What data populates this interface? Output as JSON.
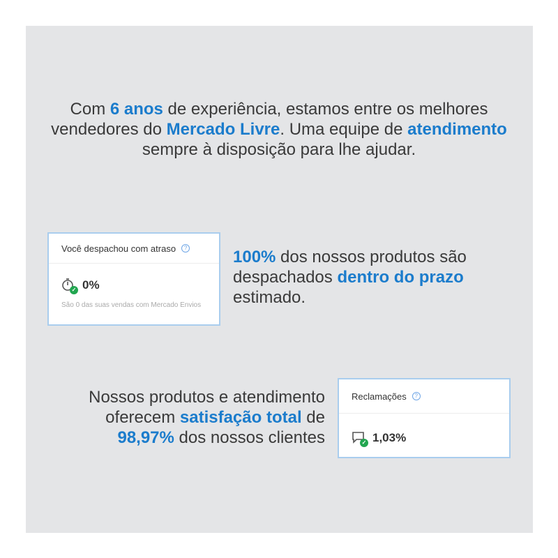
{
  "intro": [
    {
      "text": "Com ",
      "hl": false
    },
    {
      "text": "6 anos",
      "hl": true
    },
    {
      "text": " de experiência, estamos entre os melhores vendedores do ",
      "hl": false
    },
    {
      "text": "Mercado Livre",
      "hl": true
    },
    {
      "text": ". Uma equipe de ",
      "hl": false
    },
    {
      "text": "atendimento",
      "hl": true
    },
    {
      "text": " sempre à disposição para lhe ajudar.",
      "hl": false
    }
  ],
  "shipping_text": [
    {
      "text": "100%",
      "hl": true
    },
    {
      "text": " dos nossos produtos são despachados ",
      "hl": false
    },
    {
      "text": "dentro do prazo",
      "hl": true
    },
    {
      "text": " estimado.",
      "hl": false
    }
  ],
  "satisfaction_text": [
    {
      "text": "Nossos produtos e atendimento oferecem ",
      "hl": false
    },
    {
      "text": "satisfação total",
      "hl": true
    },
    {
      "text": " de ",
      "hl": false
    },
    {
      "text": "98,97%",
      "hl": true
    },
    {
      "text": " dos nossos clientes",
      "hl": false
    }
  ],
  "delay_card": {
    "title": "Você despachou com atraso",
    "help": "?",
    "value": "0%",
    "note": "São 0 das suas vendas com Mercado Envios",
    "icon": "stopwatch-check-icon"
  },
  "claims_card": {
    "title": "Reclamações",
    "help": "?",
    "value": "1,03%",
    "icon": "chat-check-icon"
  },
  "colors": {
    "highlight": "#1b7ccc",
    "background": "#e4e5e7",
    "check": "#22a650"
  }
}
